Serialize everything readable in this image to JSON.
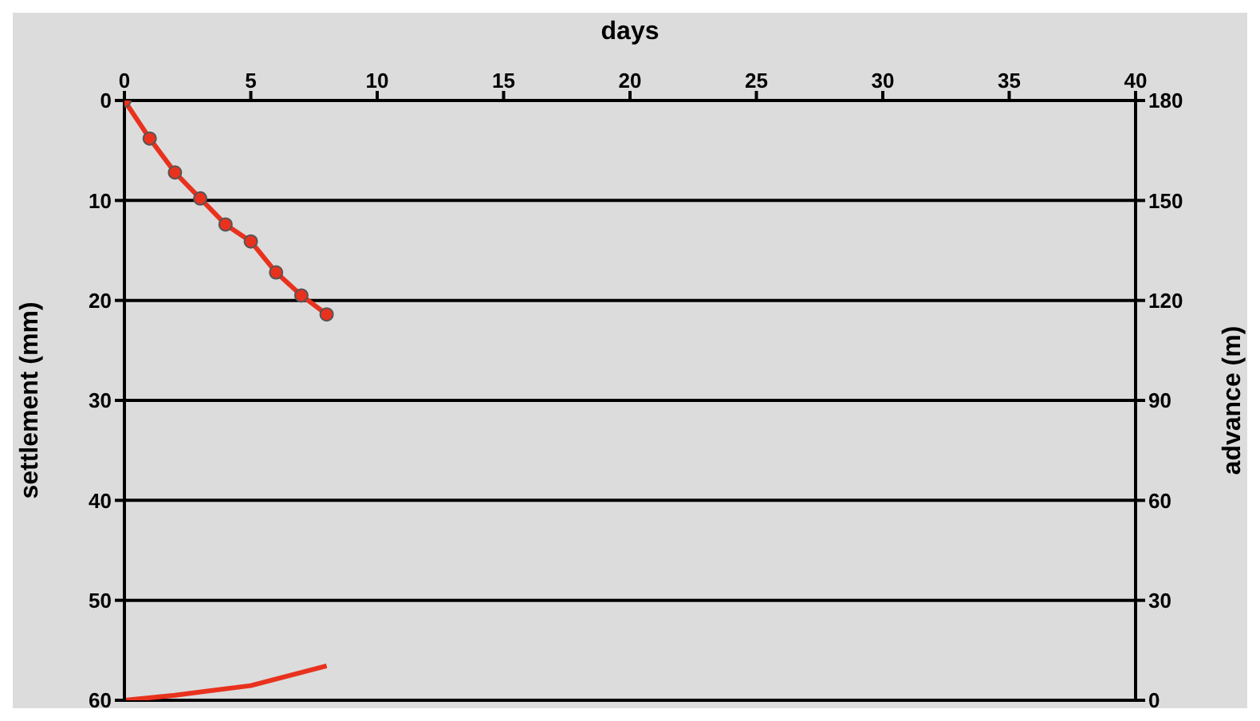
{
  "chart_data": {
    "type": "line",
    "xlabel": "days",
    "ylabel": "settlement (mm)",
    "y2label": "advance (m)",
    "xlim": [
      0,
      40
    ],
    "xticks": [
      0,
      5,
      10,
      15,
      20,
      25,
      30,
      35,
      40
    ],
    "ylim": [
      60,
      0
    ],
    "yticks": [
      0,
      10,
      20,
      30,
      40,
      50,
      60
    ],
    "y2lim": [
      0,
      180
    ],
    "y2ticks": [
      0,
      30,
      60,
      90,
      120,
      150,
      180
    ],
    "grid": true,
    "legend": false,
    "series": [
      {
        "color": "#e8321e",
        "marker": "circle",
        "x": [
          0,
          1,
          2,
          3,
          4,
          5,
          6,
          7,
          8
        ],
        "values": [
          0,
          3.8,
          7.2,
          9.8,
          12.4,
          14.1,
          17.2,
          19.5,
          21.4
        ]
      },
      {
        "color": "#e8321e",
        "marker": "none",
        "axis": "y2",
        "x": [
          0,
          2,
          5,
          8
        ],
        "values": [
          0,
          1.5,
          4.4,
          10.3
        ]
      }
    ]
  }
}
